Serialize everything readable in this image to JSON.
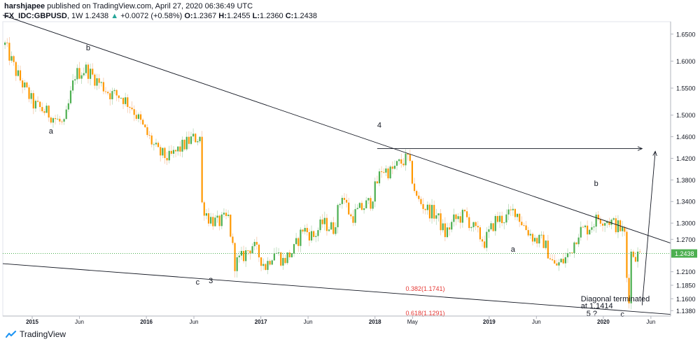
{
  "header": {
    "author": "harshjapee",
    "published_text": "published on TradingView.com, April 27, 2020 06:36:49 UTC",
    "symbol": "FX_IDC:GBPUSD",
    "interval": "1W",
    "last": "1.2438",
    "change": "+0.0072 (+0.58%)",
    "o_label": "O:",
    "o_value": "1.2367",
    "h_label": "H:",
    "h_value": "1.2455",
    "l_label": "L:",
    "l_value": "1.2360",
    "c_label": "C:",
    "c_value": "1.2438"
  },
  "footer": {
    "brand": "TradingView"
  },
  "colors": {
    "up": "#4caf50",
    "down": "#ff9800",
    "price_line": "#4caf50",
    "fib_text": "#e53935",
    "axis_text": "#131722",
    "trend_line": "#131722"
  },
  "chart_data": {
    "type": "candlestick",
    "title": "",
    "ylim": [
      1.128,
      1.673
    ],
    "y_ticks": [
      "1.6500",
      "1.6000",
      "1.5500",
      "1.5000",
      "1.4600",
      "1.4200",
      "1.3800",
      "1.3400",
      "1.3000",
      "1.2700",
      "1.2438",
      "1.2100",
      "1.1850",
      "1.1600",
      "1.1380"
    ],
    "x_ticks": [
      "2015",
      "Jun",
      "2016",
      "Jun",
      "2017",
      "Jun",
      "2018",
      "May",
      "2019",
      "Jun",
      "2020",
      "Jun"
    ],
    "x_tick_dates": [
      "2015-01-01",
      "2015-06-01",
      "2016-01-01",
      "2016-06-01",
      "2017-01-01",
      "2017-06-01",
      "2018-01-01",
      "2018-05-01",
      "2019-01-01",
      "2019-06-01",
      "2020-01-01",
      "2020-06-01"
    ],
    "x_range": [
      "2014-09-29",
      "2020-08-03"
    ],
    "current_price": 1.2438,
    "price_anchors": [
      [
        "2014-10-06",
        1.63
      ],
      [
        "2014-11-10",
        1.58
      ],
      [
        "2015-01-05",
        1.52
      ],
      [
        "2015-03-02",
        1.5
      ],
      [
        "2015-04-13",
        1.48
      ],
      [
        "2015-05-18",
        1.575
      ],
      [
        "2015-06-22",
        1.585
      ],
      [
        "2015-08-03",
        1.56
      ],
      [
        "2015-09-07",
        1.54
      ],
      [
        "2015-10-12",
        1.535
      ],
      [
        "2015-11-16",
        1.515
      ],
      [
        "2015-12-28",
        1.47
      ],
      [
        "2016-02-08",
        1.43
      ],
      [
        "2016-03-14",
        1.42
      ],
      [
        "2016-04-11",
        1.435
      ],
      [
        "2016-05-23",
        1.455
      ],
      [
        "2016-06-20",
        1.46
      ],
      [
        "2016-06-27",
        1.335
      ],
      [
        "2016-07-18",
        1.31
      ],
      [
        "2016-08-15",
        1.3
      ],
      [
        "2016-09-19",
        1.31
      ],
      [
        "2016-10-10",
        1.225
      ],
      [
        "2016-10-31",
        1.235
      ],
      [
        "2016-12-05",
        1.26
      ],
      [
        "2017-01-16",
        1.22
      ],
      [
        "2017-02-13",
        1.25
      ],
      [
        "2017-03-13",
        1.23
      ],
      [
        "2017-04-17",
        1.25
      ],
      [
        "2017-05-15",
        1.29
      ],
      [
        "2017-06-19",
        1.275
      ],
      [
        "2017-07-17",
        1.3
      ],
      [
        "2017-08-21",
        1.29
      ],
      [
        "2017-09-18",
        1.355
      ],
      [
        "2017-10-16",
        1.31
      ],
      [
        "2017-11-13",
        1.325
      ],
      [
        "2017-12-18",
        1.34
      ],
      [
        "2018-01-22",
        1.4
      ],
      [
        "2018-02-19",
        1.395
      ],
      [
        "2018-03-19",
        1.41
      ],
      [
        "2018-04-16",
        1.42
      ],
      [
        "2018-05-14",
        1.345
      ],
      [
        "2018-06-18",
        1.325
      ],
      [
        "2018-07-16",
        1.315
      ],
      [
        "2018-08-13",
        1.28
      ],
      [
        "2018-09-10",
        1.305
      ],
      [
        "2018-10-15",
        1.315
      ],
      [
        "2018-11-12",
        1.29
      ],
      [
        "2018-12-17",
        1.265
      ],
      [
        "2019-01-21",
        1.305
      ],
      [
        "2019-02-25",
        1.31
      ],
      [
        "2019-03-25",
        1.325
      ],
      [
        "2019-04-22",
        1.295
      ],
      [
        "2019-05-27",
        1.27
      ],
      [
        "2019-06-24",
        1.265
      ],
      [
        "2019-07-29",
        1.22
      ],
      [
        "2019-08-26",
        1.23
      ],
      [
        "2019-09-16",
        1.245
      ],
      [
        "2019-10-14",
        1.285
      ],
      [
        "2019-11-11",
        1.29
      ],
      [
        "2019-12-16",
        1.31
      ],
      [
        "2020-01-20",
        1.305
      ],
      [
        "2020-02-24",
        1.29
      ],
      [
        "2020-03-09",
        1.28
      ],
      [
        "2020-03-16",
        1.2
      ],
      [
        "2020-03-23",
        1.165
      ],
      [
        "2020-03-30",
        1.245
      ],
      [
        "2020-04-20",
        1.24
      ],
      [
        "2020-04-27",
        1.2438
      ]
    ],
    "trend_lines": [
      {
        "from": [
          "2014-09-29",
          1.685
        ],
        "to": [
          "2020-08-03",
          1.263
        ]
      },
      {
        "from": [
          "2014-09-29",
          1.225
        ],
        "to": [
          "2020-08-03",
          1.1312
        ]
      },
      {
        "from": [
          "2018-01-08",
          1.438
        ],
        "to": [
          "2020-05-04",
          1.438
        ],
        "arrow": true
      },
      {
        "from": [
          "2020-05-04",
          1.148
        ],
        "to": [
          "2020-06-15",
          1.433
        ],
        "arrow": true
      }
    ],
    "annotations": [
      {
        "id": "wave-a-1",
        "text": "a",
        "date": "2015-03-02",
        "price": 1.466
      },
      {
        "id": "wave-b-1",
        "text": "b",
        "date": "2015-06-29",
        "price": 1.62
      },
      {
        "id": "wave-c-1",
        "text": "c",
        "date": "2016-06-13",
        "price": 1.186
      },
      {
        "id": "wave-3",
        "text": "3",
        "date": "2016-07-25",
        "price": 1.189
      },
      {
        "id": "wave-4",
        "text": "4",
        "date": "2018-01-15",
        "price": 1.477
      },
      {
        "id": "wave-a-2",
        "text": "a",
        "date": "2019-03-18",
        "price": 1.247
      },
      {
        "id": "wave-b-2",
        "text": "b",
        "date": "2019-12-09",
        "price": 1.369
      },
      {
        "id": "wave-5",
        "text": "5 ?",
        "date": "2019-11-25",
        "price": 1.128
      },
      {
        "id": "wave-c-2",
        "text": "c",
        "date": "2020-03-02",
        "price": 1.127
      }
    ],
    "fib_labels": [
      {
        "text": "0.382(1.1741)",
        "date": "2018-04-09",
        "price": 1.1743
      },
      {
        "text": "0.618(1.1291)",
        "date": "2018-04-09",
        "price": 1.1292
      }
    ],
    "notes": [
      {
        "line1": "Diagonal terminated",
        "line2": "at 1.1414",
        "date": "2019-10-21",
        "price": 1.1555
      }
    ]
  }
}
